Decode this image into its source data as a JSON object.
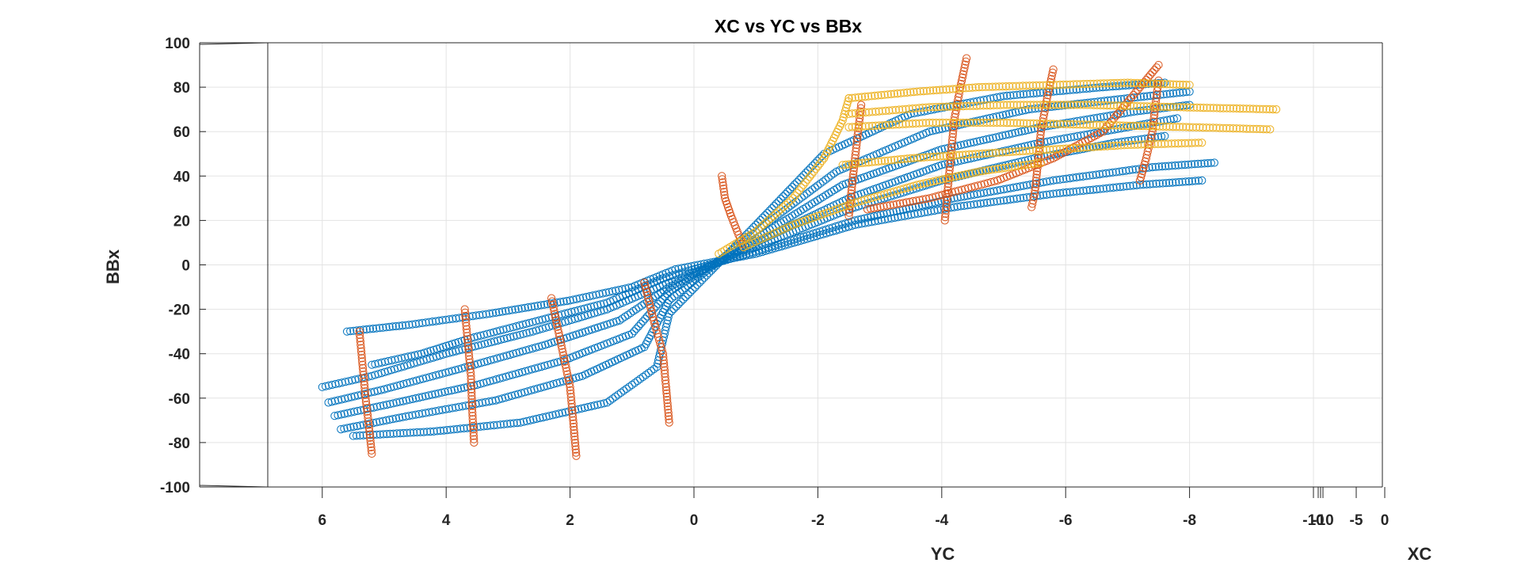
{
  "chart_data": {
    "type": "scatter",
    "title": "XC vs YC vs BBx",
    "xlabel": "XC",
    "ylabel": "BBx",
    "zlabel": "YC",
    "view": "3d",
    "grid": true,
    "marker": "open-circle",
    "ylim": [
      -100,
      100
    ],
    "yticks": [
      "100",
      "80",
      "60",
      "40",
      "20",
      "0",
      "-20",
      "-40",
      "-60",
      "-80",
      "-100"
    ],
    "yc_ticks": [
      "8",
      "6",
      "4",
      "2",
      "0",
      "-2",
      "-4",
      "-6",
      "-8",
      "-10"
    ],
    "xc_ticks": [
      "-10",
      "-5",
      "0"
    ],
    "series_colors": [
      "#0072bd",
      "#d95319",
      "#edb120"
    ],
    "series": [
      {
        "color": "#0072bd",
        "curves": [
          [
            [
              6.0,
              -55
            ],
            [
              5.2,
              -50
            ],
            [
              4.0,
              -40
            ],
            [
              2.6,
              -30
            ],
            [
              1.4,
              -20
            ],
            [
              0.4,
              -8
            ],
            [
              -1.0,
              8
            ],
            [
              -2.5,
              25
            ],
            [
              -4.0,
              38
            ],
            [
              -5.5,
              48
            ],
            [
              -6.8,
              55
            ],
            [
              -7.6,
              58
            ]
          ],
          [
            [
              5.9,
              -62
            ],
            [
              5.0,
              -56
            ],
            [
              3.8,
              -47
            ],
            [
              2.4,
              -36
            ],
            [
              1.2,
              -25
            ],
            [
              0.4,
              -10
            ],
            [
              -1.0,
              10
            ],
            [
              -2.5,
              30
            ],
            [
              -4.0,
              45
            ],
            [
              -5.6,
              55
            ],
            [
              -7.0,
              62
            ],
            [
              -7.8,
              66
            ]
          ],
          [
            [
              5.8,
              -68
            ],
            [
              4.8,
              -62
            ],
            [
              3.5,
              -54
            ],
            [
              2.1,
              -43
            ],
            [
              1.0,
              -31
            ],
            [
              0.4,
              -12
            ],
            [
              -1.0,
              12
            ],
            [
              -2.4,
              36
            ],
            [
              -4.0,
              52
            ],
            [
              -5.6,
              62
            ],
            [
              -7.1,
              69
            ],
            [
              -8.0,
              72
            ]
          ],
          [
            [
              5.7,
              -74
            ],
            [
              4.6,
              -68
            ],
            [
              3.2,
              -61
            ],
            [
              1.8,
              -50
            ],
            [
              0.8,
              -37
            ],
            [
              0.4,
              -16
            ],
            [
              -1.0,
              15
            ],
            [
              -2.3,
              42
            ],
            [
              -3.8,
              60
            ],
            [
              -5.4,
              70
            ],
            [
              -7.0,
              75
            ],
            [
              -8.0,
              78
            ]
          ],
          [
            [
              5.5,
              -77
            ],
            [
              4.2,
              -75
            ],
            [
              2.8,
              -71
            ],
            [
              1.4,
              -62
            ],
            [
              0.6,
              -46
            ],
            [
              0.4,
              -22
            ],
            [
              -1.0,
              18
            ],
            [
              -2.1,
              50
            ],
            [
              -3.5,
              68
            ],
            [
              -5.0,
              76
            ],
            [
              -6.6,
              80
            ],
            [
              -7.6,
              82
            ]
          ],
          [
            [
              5.6,
              -30
            ],
            [
              4.6,
              -27
            ],
            [
              3.3,
              -22
            ],
            [
              2.0,
              -16
            ],
            [
              1.0,
              -10
            ],
            [
              0.3,
              -2
            ],
            [
              -1.0,
              5
            ],
            [
              -2.6,
              18
            ],
            [
              -4.2,
              26
            ],
            [
              -5.8,
              32
            ],
            [
              -7.2,
              36
            ],
            [
              -8.2,
              38
            ]
          ],
          [
            [
              5.2,
              -45
            ],
            [
              4.4,
              -40
            ],
            [
              3.6,
              -33
            ],
            [
              2.5,
              -25
            ],
            [
              1.4,
              -17
            ],
            [
              0.5,
              -6
            ],
            [
              -1.0,
              6
            ],
            [
              -2.6,
              20
            ],
            [
              -4.2,
              30
            ],
            [
              -5.8,
              38
            ],
            [
              -7.4,
              44
            ],
            [
              -8.4,
              46
            ]
          ]
        ]
      },
      {
        "color": "#d95319",
        "curves": [
          [
            [
              5.4,
              -30
            ],
            [
              5.35,
              -45
            ],
            [
              5.3,
              -60
            ],
            [
              5.25,
              -72
            ],
            [
              5.2,
              -85
            ]
          ],
          [
            [
              3.7,
              -20
            ],
            [
              3.65,
              -35
            ],
            [
              3.6,
              -50
            ],
            [
              3.58,
              -65
            ],
            [
              3.55,
              -80
            ]
          ],
          [
            [
              2.3,
              -15
            ],
            [
              2.15,
              -35
            ],
            [
              2.0,
              -55
            ],
            [
              1.95,
              -70
            ],
            [
              1.9,
              -86
            ]
          ],
          [
            [
              0.8,
              -8
            ],
            [
              0.65,
              -25
            ],
            [
              0.5,
              -40
            ],
            [
              0.45,
              -55
            ],
            [
              0.4,
              -71
            ]
          ],
          [
            [
              -0.8,
              8
            ],
            [
              -0.7,
              15
            ],
            [
              -0.6,
              22
            ],
            [
              -0.5,
              30
            ],
            [
              -0.45,
              40
            ]
          ],
          [
            [
              -2.7,
              72
            ],
            [
              -2.65,
              60
            ],
            [
              -2.6,
              48
            ],
            [
              -2.55,
              35
            ],
            [
              -2.5,
              22
            ]
          ],
          [
            [
              -4.4,
              93
            ],
            [
              -4.3,
              80
            ],
            [
              -4.2,
              65
            ],
            [
              -4.15,
              50
            ],
            [
              -4.1,
              35
            ],
            [
              -4.05,
              20
            ]
          ],
          [
            [
              -5.8,
              88
            ],
            [
              -5.7,
              75
            ],
            [
              -5.6,
              60
            ],
            [
              -5.55,
              45
            ],
            [
              -5.5,
              32
            ],
            [
              -5.45,
              26
            ]
          ],
          [
            [
              -7.5,
              83
            ],
            [
              -7.45,
              72
            ],
            [
              -7.4,
              60
            ],
            [
              -7.3,
              48
            ],
            [
              -7.2,
              38
            ]
          ],
          [
            [
              -2.8,
              25
            ],
            [
              -3.8,
              30
            ],
            [
              -4.9,
              38
            ],
            [
              -5.8,
              48
            ],
            [
              -6.6,
              60
            ],
            [
              -7.2,
              80
            ],
            [
              -7.5,
              90
            ]
          ]
        ]
      },
      {
        "color": "#edb120",
        "curves": [
          [
            [
              -2.5,
              75
            ],
            [
              -3.6,
              78
            ],
            [
              -4.6,
              80
            ],
            [
              -5.8,
              81
            ],
            [
              -7.0,
              82
            ],
            [
              -8.0,
              81
            ]
          ],
          [
            [
              -2.5,
              68
            ],
            [
              -3.8,
              71
            ],
            [
              -5.0,
              72
            ],
            [
              -6.4,
              72
            ],
            [
              -7.8,
              71
            ],
            [
              -9.4,
              70
            ]
          ],
          [
            [
              -2.5,
              62
            ],
            [
              -3.8,
              64
            ],
            [
              -5.0,
              64
            ],
            [
              -6.5,
              63
            ],
            [
              -8.0,
              62
            ],
            [
              -9.3,
              61
            ]
          ],
          [
            [
              -2.4,
              45
            ],
            [
              -3.5,
              48
            ],
            [
              -4.6,
              50
            ],
            [
              -5.8,
              52
            ],
            [
              -7.0,
              54
            ],
            [
              -8.2,
              55
            ]
          ],
          [
            [
              -0.4,
              5
            ],
            [
              -1.0,
              15
            ],
            [
              -1.6,
              30
            ],
            [
              -2.1,
              48
            ],
            [
              -2.4,
              65
            ],
            [
              -2.5,
              75
            ]
          ],
          [
            [
              -0.8,
              8
            ],
            [
              -1.6,
              18
            ],
            [
              -2.6,
              28
            ],
            [
              -3.6,
              36
            ],
            [
              -4.6,
              42
            ],
            [
              -5.6,
              46
            ]
          ]
        ]
      }
    ]
  }
}
